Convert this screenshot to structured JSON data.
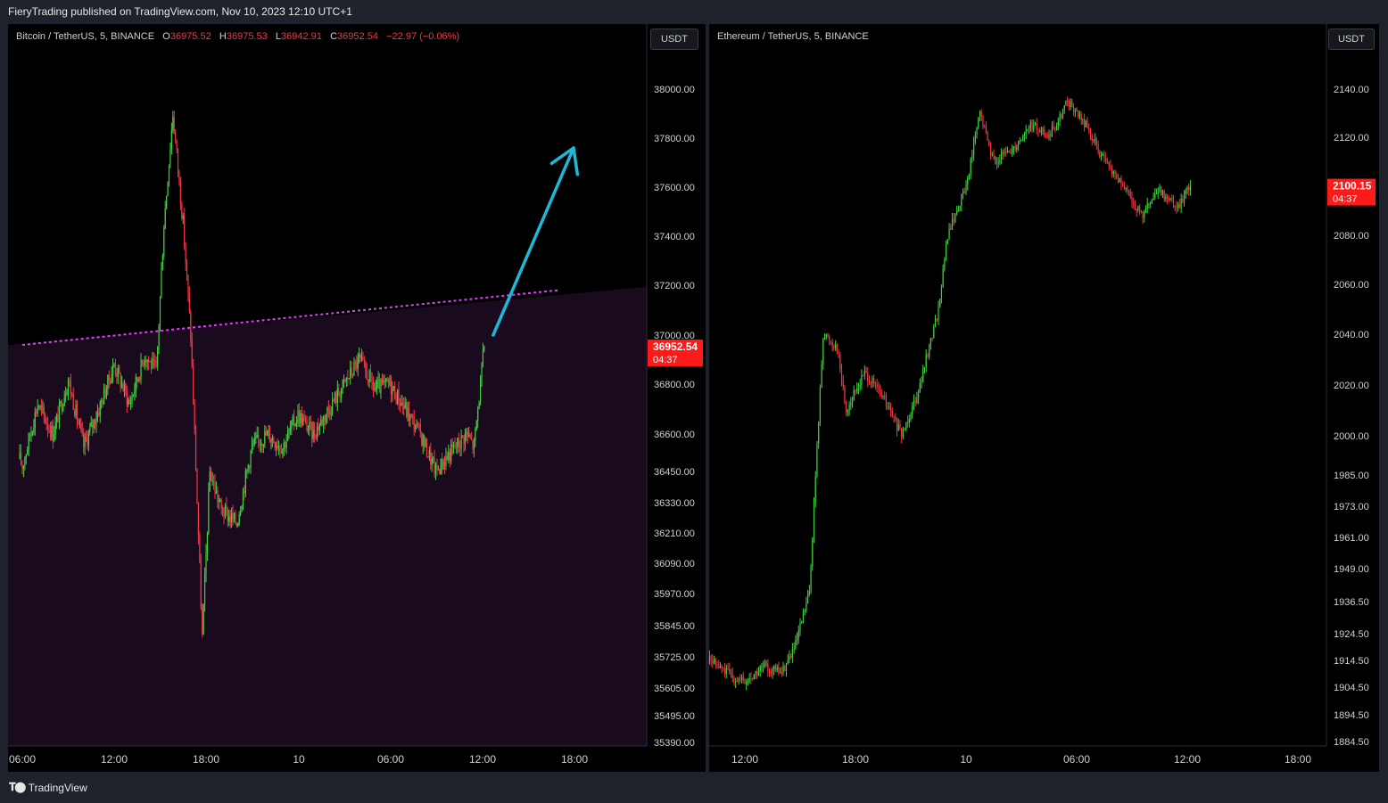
{
  "header": {
    "published": "FieryTrading published on TradingView.com, Nov 10, 2023 12:10 UTC+1"
  },
  "footer": {
    "brand": "TradingView",
    "logo_icon": "tradingview-logo-icon"
  },
  "colors": {
    "up": "#26a69a",
    "down": "#ef5350",
    "up_candle": "#3fd13f",
    "down_candle": "#f23645",
    "trendline": "#e040fb",
    "arrow": "#1fb8d8",
    "shade": "#1a0a1e",
    "price_tag": "#ff1a1a"
  },
  "chart_data": [
    {
      "type": "candlestick",
      "title": "Bitcoin / TetherUS, 5, BINANCE",
      "ohlc_labels": [
        "O",
        "H",
        "L",
        "C"
      ],
      "ohlc_values": [
        "36975.52",
        "36975.53",
        "36942.91",
        "36952.54"
      ],
      "change": "−22.97 (−0.06%)",
      "currency_button": "USDT",
      "y_ticks": [
        "38000.00",
        "37800.00",
        "37600.00",
        "37400.00",
        "37200.00",
        "37000.00",
        "36800.00",
        "36600.00",
        "36450.00",
        "36330.00",
        "36210.00",
        "36090.00",
        "35970.00",
        "35845.00",
        "35725.00",
        "35605.00",
        "35495.00",
        "35390.00"
      ],
      "x_ticks": [
        "06:00",
        "12:00",
        "18:00",
        "10",
        "06:00",
        "12:00",
        "18:00"
      ],
      "last_price": "36952.54",
      "countdown": "04:37",
      "trendline": {
        "label": "",
        "from": [
          "Nov 9 06:00",
          36960
        ],
        "to": [
          "Nov 10 17:00",
          37180
        ]
      },
      "arrow": {
        "from": [
          "Nov 10 12:45",
          37000
        ],
        "to": [
          "Nov 10 18:00",
          37760
        ]
      },
      "path": [
        [
          "Nov 9 05:50",
          36500
        ],
        [
          "Nov 9 06:00",
          36470
        ],
        [
          "Nov 9 07:00",
          36720
        ],
        [
          "Nov 9 08:00",
          36600
        ],
        [
          "Nov 9 09:00",
          36820
        ],
        [
          "Nov 9 10:00",
          36550
        ],
        [
          "Nov 9 11:00",
          36700
        ],
        [
          "Nov 9 12:00",
          36880
        ],
        [
          "Nov 9 13:00",
          36720
        ],
        [
          "Nov 9 14:00",
          36920
        ],
        [
          "Nov 9 14:45",
          36850
        ],
        [
          "Nov 9 15:15",
          37450
        ],
        [
          "Nov 9 15:50",
          37900
        ],
        [
          "Nov 9 16:30",
          37450
        ],
        [
          "Nov 9 17:00",
          37000
        ],
        [
          "Nov 9 17:30",
          36200
        ],
        [
          "Nov 9 17:45",
          35800
        ],
        [
          "Nov 9 18:15",
          36450
        ],
        [
          "Nov 9 19:00",
          36300
        ],
        [
          "Nov 9 20:00",
          36250
        ],
        [
          "Nov 9 21:00",
          36550
        ],
        [
          "Nov 9 22:00",
          36600
        ],
        [
          "Nov 9 23:00",
          36550
        ],
        [
          "Nov 10 00:00",
          36680
        ],
        [
          "Nov 10 01:00",
          36600
        ],
        [
          "Nov 10 02:00",
          36700
        ],
        [
          "Nov 10 03:00",
          36800
        ],
        [
          "Nov 10 04:00",
          36900
        ],
        [
          "Nov 10 05:00",
          36780
        ],
        [
          "Nov 10 06:00",
          36800
        ],
        [
          "Nov 10 07:00",
          36700
        ],
        [
          "Nov 10 08:00",
          36600
        ],
        [
          "Nov 10 09:00",
          36450
        ],
        [
          "Nov 10 10:00",
          36530
        ],
        [
          "Nov 10 11:00",
          36600
        ],
        [
          "Nov 10 11:30",
          36550
        ],
        [
          "Nov 10 12:10",
          36952.54
        ]
      ]
    },
    {
      "type": "candlestick",
      "title": "Ethereum / TetherUS, 5, BINANCE",
      "currency_button": "USDT",
      "y_ticks": [
        "2140.00",
        "2120.00",
        "2100.00",
        "2080.00",
        "2060.00",
        "2040.00",
        "2020.00",
        "2000.00",
        "1985.00",
        "1973.00",
        "1961.00",
        "1949.00",
        "1936.50",
        "1924.50",
        "1914.50",
        "1904.50",
        "1894.50",
        "1884.50"
      ],
      "x_ticks": [
        "12:00",
        "18:00",
        "10",
        "06:00",
        "12:00",
        "18:00"
      ],
      "last_price": "2100.15",
      "countdown": "04:37",
      "path": [
        [
          "Nov 9 09:00",
          1912
        ],
        [
          "Nov 9 10:00",
          1915
        ],
        [
          "Nov 9 11:00",
          1910
        ],
        [
          "Nov 9 12:00",
          1906
        ],
        [
          "Nov 9 13:00",
          1912
        ],
        [
          "Nov 9 14:00",
          1910
        ],
        [
          "Nov 9 14:45",
          1920
        ],
        [
          "Nov 9 15:30",
          1940
        ],
        [
          "Nov 9 16:15",
          2040
        ],
        [
          "Nov 9 17:00",
          2035
        ],
        [
          "Nov 9 17:30",
          2010
        ],
        [
          "Nov 9 18:30",
          2025
        ],
        [
          "Nov 9 19:30",
          2015
        ],
        [
          "Nov 9 20:30",
          2000
        ],
        [
          "Nov 9 21:30",
          2020
        ],
        [
          "Nov 9 22:30",
          2050
        ],
        [
          "Nov 9 23:00",
          2080
        ],
        [
          "Nov 10 00:00",
          2100
        ],
        [
          "Nov 10 00:45",
          2130
        ],
        [
          "Nov 10 01:30",
          2110
        ],
        [
          "Nov 10 02:30",
          2115
        ],
        [
          "Nov 10 03:30",
          2125
        ],
        [
          "Nov 10 04:30",
          2120
        ],
        [
          "Nov 10 05:30",
          2135
        ],
        [
          "Nov 10 06:30",
          2125
        ],
        [
          "Nov 10 07:30",
          2110
        ],
        [
          "Nov 10 08:30",
          2100
        ],
        [
          "Nov 10 09:30",
          2088
        ],
        [
          "Nov 10 10:30",
          2098
        ],
        [
          "Nov 10 11:30",
          2092
        ],
        [
          "Nov 10 12:10",
          2100.15
        ]
      ]
    }
  ]
}
